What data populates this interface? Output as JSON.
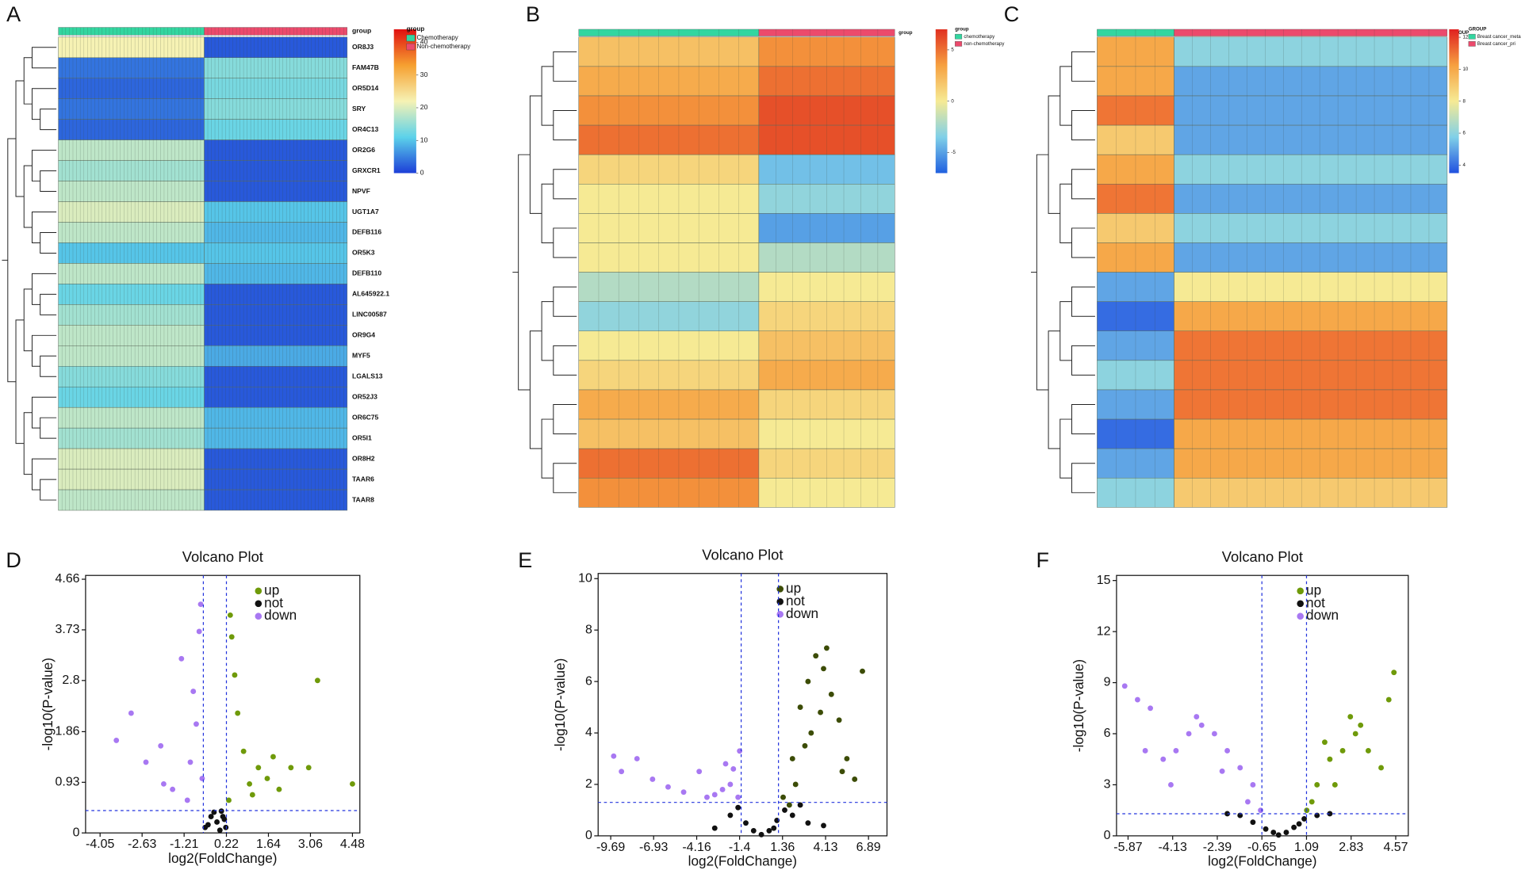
{
  "chart_data": [
    {
      "type": "heatmap",
      "panel_label": "A",
      "group_title": "group",
      "rows": [
        "OR8J3",
        "FAM47B",
        "OR5D14",
        "SRY",
        "OR4C13",
        "OR2G6",
        "GRXCR1",
        "NPVF",
        "UGT1A7",
        "DEFB116",
        "OR5K3",
        "DEFB110",
        "AL645922.1",
        "LINC00587",
        "OR9G4",
        "MYF5",
        "LGALS13",
        "OR52J3",
        "OR6C75",
        "OR5I1",
        "OR8H2",
        "TAAR6",
        "TAAR8"
      ],
      "series": [
        {
          "name": "Chemotherapy",
          "color": "#33d6a0",
          "values": [
            22,
            4,
            3,
            4,
            3,
            18,
            16,
            18,
            20,
            18,
            10,
            18,
            12,
            16,
            18,
            18,
            14,
            12,
            18,
            16,
            20,
            20,
            18
          ]
        },
        {
          "name": "Non-chemotherapy",
          "color": "#ec4a6c",
          "values": [
            2,
            14,
            13,
            14,
            12,
            2,
            2,
            2,
            10,
            9,
            10,
            9,
            2,
            2,
            2,
            8,
            2,
            2,
            9,
            9,
            2,
            2,
            2
          ]
        }
      ],
      "zlim": [
        0,
        44
      ],
      "zticks": [
        0,
        10,
        20,
        30,
        40
      ],
      "colorscale": [
        "#1c3ed8",
        "#5cd2ea",
        "#f6f2b4",
        "#f6a030",
        "#e01010"
      ]
    },
    {
      "type": "heatmap",
      "panel_label": "B",
      "group_title": "group",
      "series": [
        {
          "name": "chemotherapy",
          "color": "#33d6a0",
          "values": [
            2,
            3,
            4,
            5,
            1,
            0,
            0,
            0,
            -2,
            -3,
            0,
            1,
            3,
            2,
            5,
            4
          ]
        },
        {
          "name": "non-chemotherapy",
          "color": "#ec4a6c",
          "values": [
            4,
            5,
            6,
            6,
            -4,
            -3,
            -5,
            -2,
            0,
            1,
            2,
            3,
            1,
            0,
            1,
            0
          ]
        }
      ],
      "zlim": [
        -7,
        7
      ],
      "zticks": [
        -5,
        0,
        5
      ],
      "colorscale": [
        "#2060e0",
        "#80d0e8",
        "#f6ea94",
        "#f6a040",
        "#e03020"
      ]
    },
    {
      "type": "heatmap",
      "panel_label": "C",
      "group_title": "GROUP",
      "series": [
        {
          "name": "Breast cancer_meta",
          "color": "#33d6a0",
          "values": [
            10,
            10,
            11,
            9,
            10,
            11,
            9,
            10,
            5,
            4,
            5,
            6,
            5,
            4,
            5,
            6
          ]
        },
        {
          "name": "Breast cancer_pri",
          "color": "#ec4a6c",
          "values": [
            6,
            5,
            5,
            5,
            6,
            5,
            6,
            5,
            8,
            10,
            11,
            11,
            11,
            10,
            10,
            9
          ]
        }
      ],
      "zlim": [
        3.5,
        12.5
      ],
      "zticks": [
        4,
        6,
        8,
        10,
        12
      ],
      "colorscale": [
        "#2050e0",
        "#80d0e8",
        "#f6ea94",
        "#f6a040",
        "#e02020"
      ]
    },
    {
      "type": "scatter",
      "panel_label": "D",
      "title": "Volcano Plot",
      "x_label": "log2(FoldChange)",
      "y_label": "-log10(P-value)",
      "xlim": [
        -4.54,
        4.73
      ],
      "ylim": [
        0,
        4.73
      ],
      "xticks": [
        -4.05,
        -2.63,
        -1.21,
        0.22,
        1.64,
        3.06,
        4.48
      ],
      "yticks": [
        0,
        0.93,
        1.86,
        2.8,
        3.73,
        4.66
      ],
      "thresholds": {
        "x": [
          -0.56,
          0.22
        ],
        "y": 0.41
      },
      "series": [
        {
          "name": "up",
          "color": "#6f9a0a",
          "x": [
            0.3,
            0.5,
            0.8,
            1.0,
            1.3,
            1.6,
            2.0,
            2.4,
            3.0,
            3.3,
            4.48,
            0.4,
            0.6,
            1.1,
            0.35,
            1.8
          ],
          "y": [
            0.6,
            2.9,
            1.5,
            0.9,
            1.2,
            1.0,
            0.8,
            1.2,
            1.2,
            2.8,
            0.9,
            3.6,
            2.2,
            0.7,
            4.0,
            1.4
          ]
        },
        {
          "name": "not",
          "color": "#111111",
          "x": [
            -0.5,
            -0.3,
            -0.1,
            0.0,
            0.1,
            0.2,
            -0.2,
            0.15,
            -0.4,
            0.05
          ],
          "y": [
            0.1,
            0.3,
            0.2,
            0.05,
            0.3,
            0.1,
            0.38,
            0.25,
            0.15,
            0.4
          ]
        },
        {
          "name": "down",
          "color": "#a878f2",
          "x": [
            -0.6,
            -0.8,
            -1.0,
            -1.3,
            -1.6,
            -2.0,
            -2.5,
            -3.0,
            -3.5,
            -0.7,
            -0.9,
            -1.1,
            -0.65,
            -1.9
          ],
          "y": [
            1.0,
            2.0,
            1.3,
            3.2,
            0.8,
            1.6,
            1.3,
            2.2,
            1.7,
            3.7,
            2.6,
            0.6,
            4.2,
            0.9
          ]
        }
      ]
    },
    {
      "type": "scatter",
      "panel_label": "E",
      "title": "Volcano Plot",
      "x_label": "log2(FoldChange)",
      "y_label": "-log10(P-value)",
      "xlim": [
        -10.5,
        8.08
      ],
      "ylim": [
        0,
        10.2
      ],
      "xticks": [
        -9.69,
        -6.93,
        -4.16,
        -1.4,
        1.36,
        4.13,
        6.89
      ],
      "yticks": [
        0,
        2,
        4,
        6,
        8,
        10
      ],
      "thresholds": {
        "x": [
          -1.3,
          1.1
        ],
        "y": 1.3
      },
      "series": [
        {
          "name": "up",
          "color": "#3c4c06",
          "x": [
            1.4,
            2,
            2.5,
            3,
            3.5,
            4,
            4.5,
            5,
            5.5,
            6,
            2.2,
            3.2,
            4.2,
            1.8,
            6.5,
            3.8,
            2.8,
            5.2
          ],
          "y": [
            1.5,
            3,
            5,
            6,
            7,
            6.5,
            5.5,
            4.5,
            3,
            2.2,
            2,
            4,
            7.3,
            1.2,
            6.4,
            4.8,
            3.5,
            2.5
          ]
        },
        {
          "name": "not",
          "color": "#111111",
          "x": [
            -3,
            -2,
            -1,
            -0.5,
            0,
            0.5,
            1,
            1.5,
            2,
            3,
            4,
            -1.5,
            0.8,
            2.5
          ],
          "y": [
            0.3,
            0.8,
            0.5,
            0.2,
            0.05,
            0.2,
            0.6,
            1,
            0.8,
            0.5,
            0.4,
            1.1,
            0.3,
            1.2
          ]
        },
        {
          "name": "down",
          "color": "#a878f2",
          "x": [
            -1.5,
            -2,
            -2.5,
            -3,
            -4,
            -5,
            -6,
            -7,
            -8,
            -9,
            -9.5,
            -1.8,
            -2.3,
            -3.5,
            -1.4
          ],
          "y": [
            1.5,
            2,
            1.8,
            1.6,
            2.5,
            1.7,
            1.9,
            2.2,
            3.0,
            2.5,
            3.1,
            2.6,
            2.8,
            1.5,
            3.3
          ]
        }
      ]
    },
    {
      "type": "scatter",
      "panel_label": "F",
      "title": "Volcano Plot",
      "x_label": "log2(FoldChange)",
      "y_label": "-log10(P-value)",
      "xlim": [
        -6.32,
        5.06
      ],
      "ylim": [
        0,
        15.3
      ],
      "xticks": [
        -5.87,
        -4.13,
        -2.39,
        -0.65,
        1.09,
        2.83,
        4.57
      ],
      "yticks": [
        0,
        3,
        6,
        9,
        12,
        15
      ],
      "thresholds": {
        "x": [
          -0.65,
          1.09
        ],
        "y": 1.3
      },
      "series": [
        {
          "name": "up",
          "color": "#6f9a0a",
          "x": [
            1.1,
            1.5,
            2,
            2.5,
            3,
            3.5,
            4,
            4.3,
            1.3,
            2.2,
            2.8,
            3.2,
            1.8,
            4.5
          ],
          "y": [
            1.5,
            3,
            4.5,
            5,
            6,
            5,
            4,
            8,
            2,
            3,
            7,
            6.5,
            5.5,
            9.6
          ]
        },
        {
          "name": "not",
          "color": "#111111",
          "x": [
            -1.5,
            -1,
            -0.5,
            0,
            0.3,
            0.6,
            1,
            1.5,
            -2,
            2,
            -0.2,
            0.8
          ],
          "y": [
            1.2,
            0.8,
            0.4,
            0.05,
            0.2,
            0.5,
            1,
            1.2,
            1.3,
            1.3,
            0.2,
            0.7
          ]
        },
        {
          "name": "down",
          "color": "#a878f2",
          "x": [
            -0.7,
            -1,
            -1.5,
            -2,
            -2.5,
            -3,
            -3.5,
            -4,
            -4.5,
            -5,
            -5.5,
            -6,
            -1.2,
            -2.2,
            -3.2,
            -4.2,
            -5.2
          ],
          "y": [
            1.5,
            3,
            4,
            5,
            6,
            6.5,
            6,
            5,
            4.5,
            7.5,
            8,
            8.8,
            2,
            3.8,
            7,
            3,
            5
          ]
        }
      ]
    }
  ]
}
